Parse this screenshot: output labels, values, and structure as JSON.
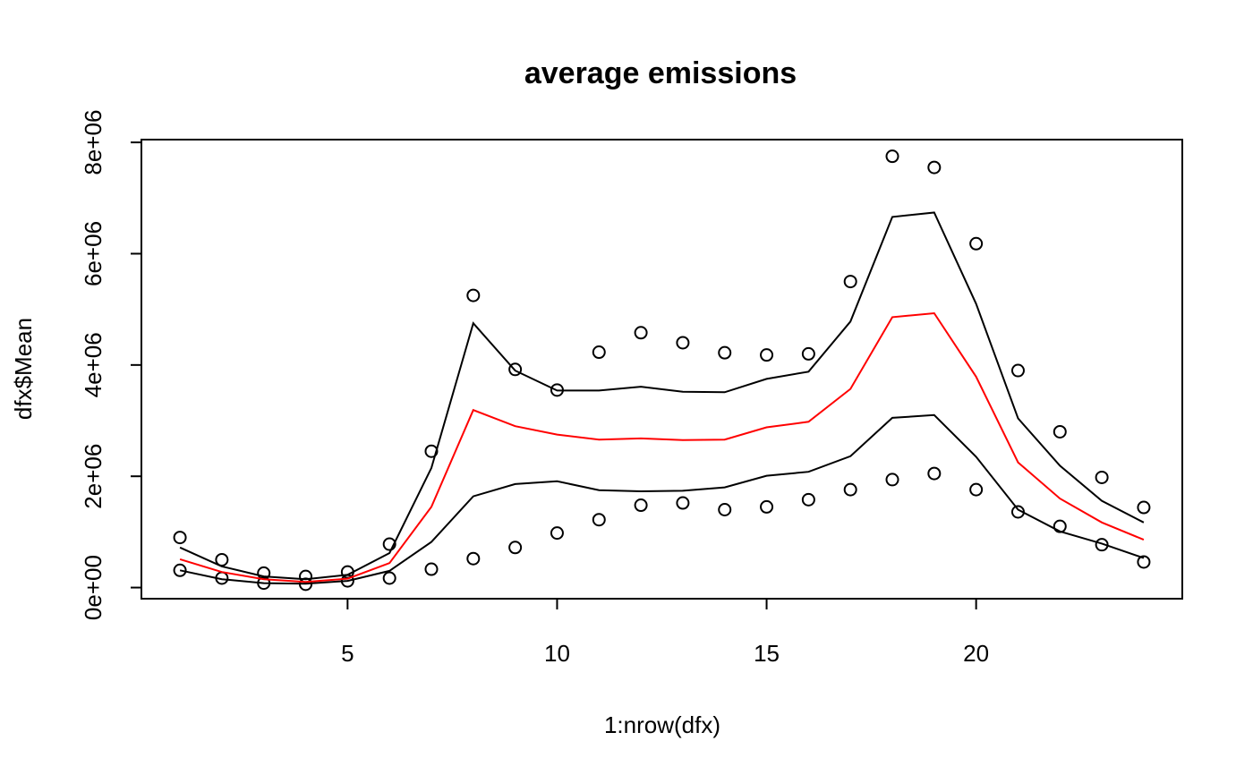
{
  "chart_data": {
    "type": "line",
    "title": "average emissions",
    "xlabel": "1:nrow(dfx)",
    "ylabel": "dfx$Mean",
    "xlim": [
      0.08,
      24.92
    ],
    "ylim": [
      -200000,
      8050000
    ],
    "x_ticks": [
      5,
      10,
      15,
      20
    ],
    "x_tick_labels": [
      "5",
      "10",
      "15",
      "20"
    ],
    "y_ticks": [
      0,
      2000000,
      4000000,
      6000000,
      8000000
    ],
    "y_tick_labels": [
      "0e+00",
      "2e+06",
      "4e+06",
      "6e+06",
      "8e+06"
    ],
    "grid": false,
    "legend": "none",
    "x": [
      1,
      2,
      3,
      4,
      5,
      6,
      7,
      8,
      9,
      10,
      11,
      12,
      13,
      14,
      15,
      16,
      17,
      18,
      19,
      20,
      21,
      22,
      23,
      24
    ],
    "series": [
      {
        "style": "points",
        "color": "#000000",
        "values": [
          900000,
          500000,
          260000,
          200000,
          280000,
          780000,
          2450000,
          5250000,
          3920000,
          3550000,
          4230000,
          4580000,
          4400000,
          4220000,
          4180000,
          4200000,
          5500000,
          7750000,
          7550000,
          6180000,
          3900000,
          2800000,
          1980000,
          1440000
        ]
      },
      {
        "style": "points",
        "color": "#000000",
        "values": [
          310000,
          170000,
          80000,
          60000,
          120000,
          170000,
          330000,
          520000,
          720000,
          980000,
          1220000,
          1480000,
          1520000,
          1400000,
          1450000,
          1580000,
          1760000,
          1940000,
          2050000,
          1760000,
          1360000,
          1100000,
          770000,
          460000
        ]
      },
      {
        "style": "line",
        "color": "#000000",
        "values": [
          720000,
          380000,
          200000,
          150000,
          230000,
          620000,
          2150000,
          4750000,
          3900000,
          3540000,
          3540000,
          3610000,
          3520000,
          3510000,
          3750000,
          3880000,
          4780000,
          6660000,
          6740000,
          5100000,
          3040000,
          2190000,
          1560000,
          1170000
        ]
      },
      {
        "style": "line",
        "color": "#ff0000",
        "values": [
          510000,
          280000,
          150000,
          100000,
          160000,
          440000,
          1450000,
          3190000,
          2900000,
          2750000,
          2660000,
          2680000,
          2650000,
          2660000,
          2880000,
          2980000,
          3570000,
          4860000,
          4930000,
          3790000,
          2250000,
          1600000,
          1170000,
          860000
        ]
      },
      {
        "style": "line",
        "color": "#000000",
        "values": [
          310000,
          150000,
          80000,
          70000,
          120000,
          300000,
          820000,
          1640000,
          1860000,
          1910000,
          1750000,
          1730000,
          1740000,
          1800000,
          2010000,
          2080000,
          2360000,
          3050000,
          3100000,
          2350000,
          1400000,
          1010000,
          790000,
          530000
        ]
      }
    ]
  }
}
